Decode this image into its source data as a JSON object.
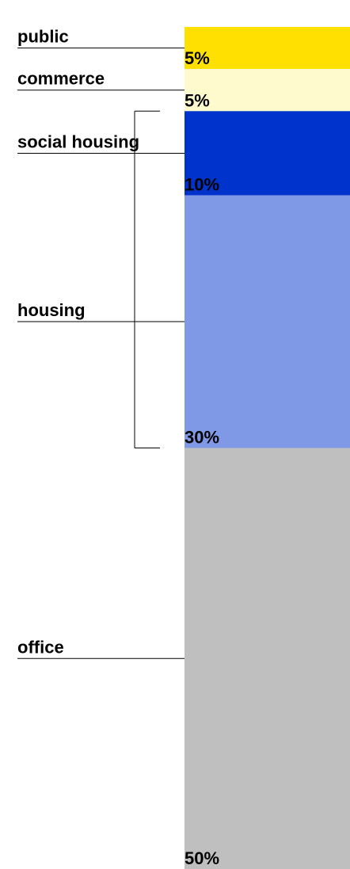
{
  "chart_data": {
    "type": "stacked-column",
    "categories": [
      "public",
      "commerce",
      "social housing",
      "housing",
      "office"
    ],
    "values": [
      5,
      5,
      10,
      30,
      50
    ],
    "value_labels": [
      "5%",
      "5%",
      "10%",
      "30%",
      "50%"
    ],
    "colors": [
      "#ffe000",
      "#fffacd",
      "#0033cc",
      "#7f99e6",
      "#bfbfbf"
    ]
  }
}
